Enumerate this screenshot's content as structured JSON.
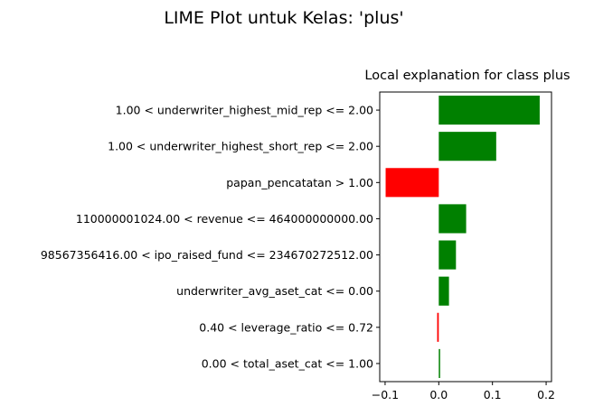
{
  "figure": {
    "suptitle": "LIME Plot untuk Kelas: 'plus'"
  },
  "chart_data": {
    "type": "bar",
    "orientation": "horizontal",
    "title": "Local explanation for class plus",
    "xlabel": "",
    "ylabel": "",
    "xlim": [
      -0.11,
      0.21
    ],
    "xticks": [
      -0.1,
      0.0,
      0.1,
      0.2
    ],
    "xtick_labels": [
      "−0.1",
      "0.0",
      "0.1",
      "0.2"
    ],
    "categories": [
      "1.00 < underwriter_highest_mid_rep <= 2.00",
      "1.00 < underwriter_highest_short_rep <= 2.00",
      "papan_pencatatan > 1.00",
      "110000001024.00 < revenue <= 464000000000.00",
      "98567356416.00 < ipo_raised_fund <= 234670272512.00",
      "underwriter_avg_aset_cat <= 0.00",
      "0.40 < leverage_ratio <= 0.72",
      "0.00 < total_aset_cat <= 1.00"
    ],
    "values": [
      0.188,
      0.107,
      -0.099,
      0.051,
      0.032,
      0.019,
      -0.003,
      0.002
    ],
    "colors": {
      "positive": "#008000",
      "negative": "#ff0000"
    },
    "grid": false,
    "legend": "none"
  }
}
